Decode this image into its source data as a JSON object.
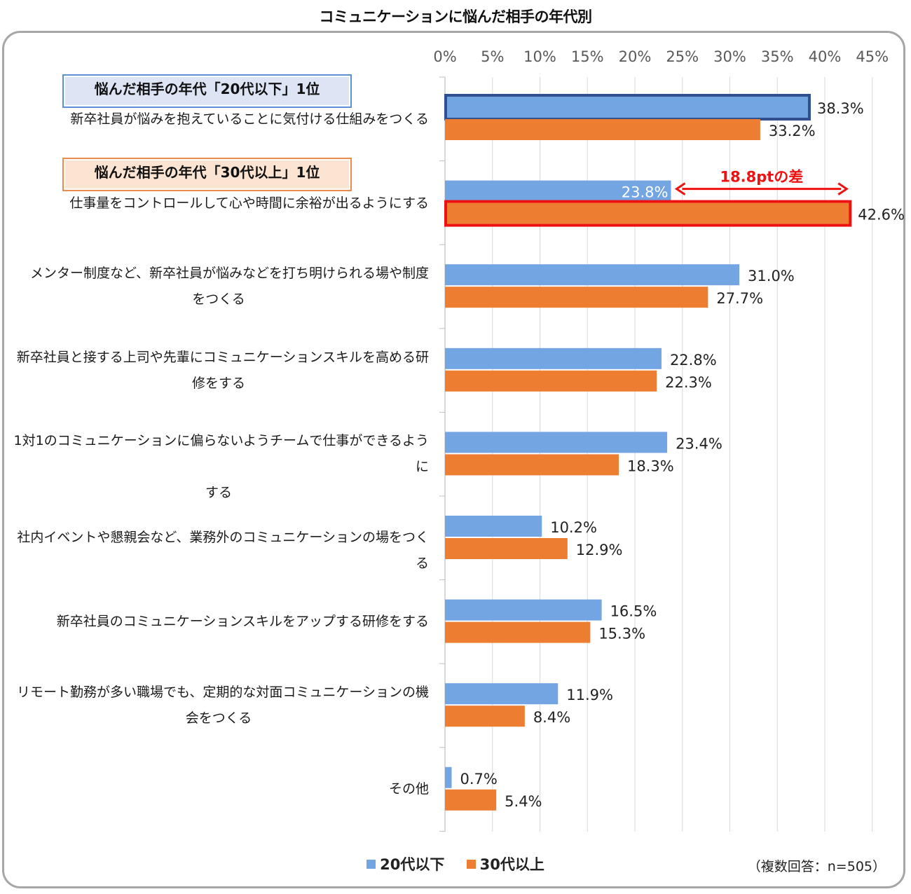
{
  "chart_data": {
    "type": "bar",
    "orientation": "horizontal",
    "title": "コミュニケーションに悩んだ相手の年代別",
    "xlim": [
      0,
      45
    ],
    "ticks": [
      "0%",
      "5%",
      "10%",
      "15%",
      "20%",
      "25%",
      "30%",
      "35%",
      "40%",
      "45%"
    ],
    "grid": true,
    "legend_position": "bottom",
    "categories": [
      "新卒社員が悩みを抱えていることに気付ける仕組みをつくる",
      "仕事量をコントロールして心や時間に余裕が出るようにする",
      "メンター制度など、新卒社員が悩みなどを打ち明けられる場や制度をつくる",
      "新卒社員と接する上司や先輩にコミュニケーションスキルを高める研修をする",
      "1対1のコミュニケーションに偏らないようチームで仕事ができるようにする",
      "社内イベントや懇親会など、業務外のコミュニケーションの場をつくる",
      "新卒社員のコミュニケーションスキルをアップする研修をする",
      "リモート勤務が多い職場でも、定期的な対面コミュニケーションの機会をつくる",
      "その他"
    ],
    "category_lines": [
      [
        "新卒社員が悩みを抱えていることに気付ける仕組みをつくる"
      ],
      [
        "仕事量をコントロールして心や時間に余裕が出るようにする"
      ],
      [
        "メンター制度など、新卒社員が悩みなどを打ち明けられる場や制度",
        "をつくる"
      ],
      [
        "新卒社員と接する上司や先輩にコミュニケーションスキルを高める研",
        "修をする"
      ],
      [
        "1対1のコミュニケーションに偏らないようチームで仕事ができるように",
        "する"
      ],
      [
        "社内イベントや懇親会など、業務外のコミュニケーションの場をつくる"
      ],
      [
        "新卒社員のコミュニケーションスキルをアップする研修をする"
      ],
      [
        "リモート勤務が多い職場でも、定期的な対面コミュニケーションの機",
        "会をつくる"
      ],
      [
        "その他"
      ]
    ],
    "series": [
      {
        "name": "20代以下",
        "color": "#72a5e2",
        "values": [
          38.3,
          23.8,
          31.0,
          22.8,
          23.4,
          10.2,
          16.5,
          11.9,
          0.7
        ],
        "labels": [
          "38.3%",
          "23.8%",
          "31.0%",
          "22.8%",
          "23.4%",
          "10.2%",
          "16.5%",
          "11.9%",
          "0.7%"
        ]
      },
      {
        "name": "30代以上",
        "color": "#ed7d31",
        "values": [
          33.2,
          42.6,
          27.7,
          22.3,
          18.3,
          12.9,
          15.3,
          8.4,
          5.4
        ],
        "labels": [
          "33.2%",
          "42.6%",
          "27.7%",
          "22.3%",
          "18.3%",
          "12.9%",
          "15.3%",
          "8.4%",
          "5.4%"
        ]
      }
    ],
    "highlights": [
      {
        "category_index": 0,
        "series_index": 0,
        "border_color": "#2f4f8f"
      },
      {
        "category_index": 1,
        "series_index": 1,
        "border_color": "#ee1111"
      }
    ],
    "annotation": {
      "text": "18.8ptの差",
      "from": 23.8,
      "to": 42.6,
      "color": "#ee1111"
    }
  },
  "callouts": {
    "under20": "悩んだ相手の年代「20代以下」1位",
    "over30": "悩んだ相手の年代「30代以上」1位"
  },
  "legend": {
    "s1": "20代以下",
    "s2": "30代以上"
  },
  "note": "（複数回答：n=505）"
}
